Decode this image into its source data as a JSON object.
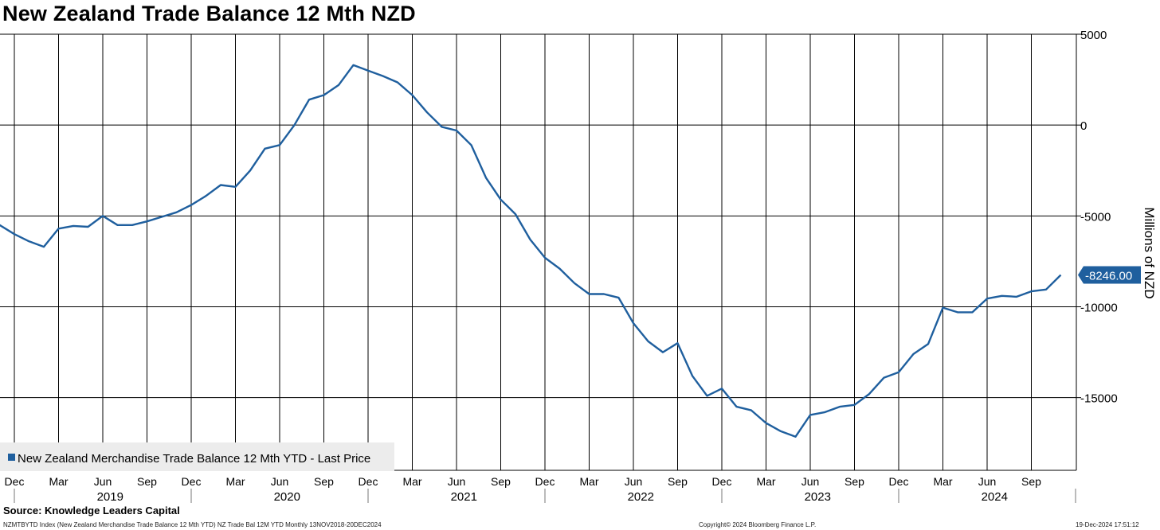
{
  "header": {
    "title": "New Zealand Trade Balance 12 Mth NZD"
  },
  "footer": {
    "source": "Source: Knowledge Leaders Capital",
    "ticker_line": "NZMTBYTD Index (New Zealand Merchandise Trade Balance 12 Mth YTD) NZ Trade Bal 12M YTD  Monthly 13NOV2018-20DEC2024",
    "copyright": "Copyright© 2024 Bloomberg Finance L.P.",
    "timestamp": "19-Dec-2024 17:51:12"
  },
  "colors": {
    "line": "#1f5f9e",
    "grid": "#000000",
    "background": "#ffffff",
    "legend_bg": "#ececec",
    "last_badge": "#1f5f9e"
  },
  "chart_data": {
    "type": "line",
    "ylabel": "Millions of NZD",
    "ylim": [
      -19000,
      5000
    ],
    "y_axis_side": "right",
    "y_ticks": [
      5000,
      0,
      -5000,
      -10000,
      -15000
    ],
    "y_tick_labels": [
      "5000",
      "0",
      "-5000",
      "-10000",
      "-15000"
    ],
    "x_tick_labels": [
      "Dec",
      "Mar",
      "Jun",
      "Sep",
      "Dec",
      "Mar",
      "Jun",
      "Sep",
      "Dec",
      "Mar",
      "Jun",
      "Sep",
      "Dec",
      "Mar",
      "Jun",
      "Sep",
      "Dec",
      "Mar",
      "Jun",
      "Sep",
      "Dec",
      "Mar",
      "Jun",
      "Sep"
    ],
    "x_year_labels": [
      "2019",
      "2020",
      "2021",
      "2022",
      "2023",
      "2024"
    ],
    "legend": {
      "label": "New Zealand Merchandise Trade Balance 12 Mth YTD - Last Price",
      "position": "bottom-left"
    },
    "last_value_label": "-8246.00",
    "grid": true,
    "series": [
      {
        "name": "New Zealand Merchandise Trade Balance 12 Mth YTD - Last Price",
        "x": [
          "2018-11",
          "2018-12",
          "2019-01",
          "2019-02",
          "2019-03",
          "2019-04",
          "2019-05",
          "2019-06",
          "2019-07",
          "2019-08",
          "2019-09",
          "2019-10",
          "2019-11",
          "2019-12",
          "2020-01",
          "2020-02",
          "2020-03",
          "2020-04",
          "2020-05",
          "2020-06",
          "2020-07",
          "2020-08",
          "2020-09",
          "2020-10",
          "2020-11",
          "2020-12",
          "2021-01",
          "2021-02",
          "2021-03",
          "2021-04",
          "2021-05",
          "2021-06",
          "2021-07",
          "2021-08",
          "2021-09",
          "2021-10",
          "2021-11",
          "2021-12",
          "2022-01",
          "2022-02",
          "2022-03",
          "2022-04",
          "2022-05",
          "2022-06",
          "2022-07",
          "2022-08",
          "2022-09",
          "2022-10",
          "2022-11",
          "2022-12",
          "2023-01",
          "2023-02",
          "2023-03",
          "2023-04",
          "2023-05",
          "2023-06",
          "2023-07",
          "2023-08",
          "2023-09",
          "2023-10",
          "2023-11",
          "2023-12",
          "2024-01",
          "2024-02",
          "2024-03",
          "2024-04",
          "2024-05",
          "2024-06",
          "2024-07",
          "2024-08",
          "2024-09",
          "2024-10",
          "2024-11"
        ],
        "values": [
          -5500,
          -6000,
          -6400,
          -6700,
          -5700,
          -5550,
          -5600,
          -5000,
          -5500,
          -5500,
          -5300,
          -5050,
          -4800,
          -4400,
          -3900,
          -3300,
          -3400,
          -2500,
          -1300,
          -1100,
          0,
          1400,
          1650,
          2200,
          3300,
          3000,
          2700,
          2350,
          1650,
          700,
          -100,
          -300,
          -1100,
          -2900,
          -4100,
          -4900,
          -6300,
          -7300,
          -7900,
          -8700,
          -9300,
          -9300,
          -9500,
          -10900,
          -11900,
          -12500,
          -12000,
          -13800,
          -14900,
          -14500,
          -15500,
          -15700,
          -16400,
          -16850,
          -17150,
          -15950,
          -15800,
          -15500,
          -15400,
          -14800,
          -13900,
          -13600,
          -12600,
          -12050,
          -10050,
          -10300,
          -10300,
          -9550,
          -9400,
          -9450,
          -9150,
          -9050,
          -8246
        ]
      }
    ]
  }
}
